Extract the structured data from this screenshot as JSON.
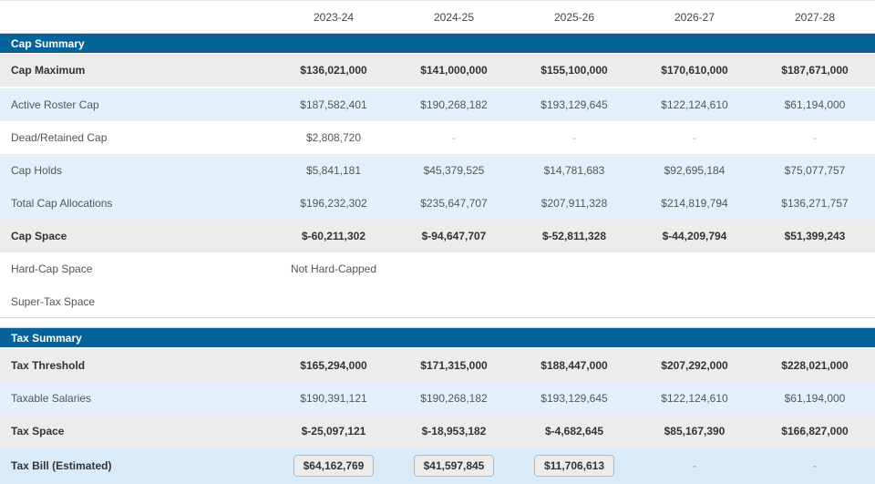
{
  "columns": [
    "2023-24",
    "2024-25",
    "2025-26",
    "2026-27",
    "2027-28"
  ],
  "cap_summary": {
    "title": "Cap Summary",
    "rows": [
      {
        "label": "Cap Maximum",
        "values": [
          "$136,021,000",
          "$141,000,000",
          "$155,100,000",
          "$170,610,000",
          "$187,671,000"
        ]
      },
      {
        "label": "Active Roster Cap",
        "values": [
          "$187,582,401",
          "$190,268,182",
          "$193,129,645",
          "$122,124,610",
          "$61,194,000"
        ]
      },
      {
        "label": "Dead/Retained Cap",
        "values": [
          "$2,808,720",
          "-",
          "-",
          "-",
          "-"
        ]
      },
      {
        "label": "Cap Holds",
        "values": [
          "$5,841,181",
          "$45,379,525",
          "$14,781,683",
          "$92,695,184",
          "$75,077,757"
        ]
      },
      {
        "label": "Total Cap Allocations",
        "values": [
          "$196,232,302",
          "$235,647,707",
          "$207,911,328",
          "$214,819,794",
          "$136,271,757"
        ]
      },
      {
        "label": "Cap Space",
        "values": [
          "$-60,211,302",
          "$-94,647,707",
          "$-52,811,328",
          "$-44,209,794",
          "$51,399,243"
        ]
      },
      {
        "label": "Hard-Cap Space",
        "values": [
          "Not Hard-Capped",
          "",
          "",
          "",
          ""
        ]
      },
      {
        "label": "Super-Tax Space",
        "values": [
          "",
          "",
          "",
          "",
          ""
        ]
      }
    ]
  },
  "tax_summary": {
    "title": "Tax Summary",
    "rows": [
      {
        "label": "Tax Threshold",
        "values": [
          "$165,294,000",
          "$171,315,000",
          "$188,447,000",
          "$207,292,000",
          "$228,021,000"
        ]
      },
      {
        "label": "Taxable Salaries",
        "values": [
          "$190,391,121",
          "$190,268,182",
          "$193,129,645",
          "$122,124,610",
          "$61,194,000"
        ]
      },
      {
        "label": "Tax Space",
        "values": [
          "$-25,097,121",
          "$-18,953,182",
          "$-4,682,645",
          "$85,167,390",
          "$166,827,000"
        ]
      },
      {
        "label": "Tax Bill (Estimated)",
        "values": [
          "$64,162,769",
          "$41,597,845",
          "$11,706,613",
          "-",
          "-"
        ]
      }
    ]
  }
}
